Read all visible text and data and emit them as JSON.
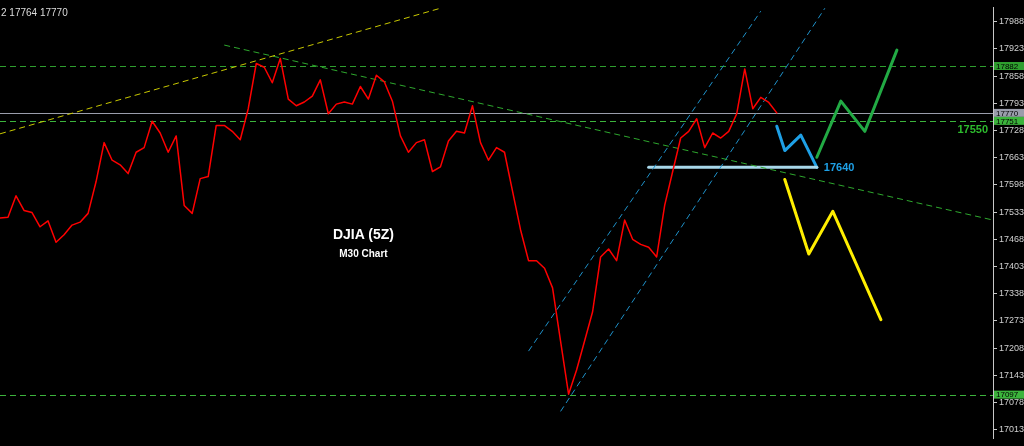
{
  "chart_data": {
    "type": "line",
    "title": "DJIA (5Z)",
    "subtitle": "M30 Chart",
    "annotations": [
      "2 17764 17770",
      "17550"
    ],
    "categories": [
      null,
      null,
      null,
      null,
      null,
      null,
      null,
      null,
      null,
      null,
      null,
      null,
      null,
      null,
      null,
      null,
      null,
      null,
      null,
      null,
      null,
      null,
      null,
      null,
      null,
      null,
      null,
      null,
      null,
      null,
      null,
      null,
      null,
      null,
      null,
      null,
      null,
      null,
      null,
      null,
      null,
      null,
      null,
      null,
      null,
      null,
      null,
      null,
      null,
      null,
      null,
      null,
      null,
      null,
      null,
      null,
      null,
      null,
      null,
      null,
      null,
      null,
      null,
      null,
      null,
      null,
      null,
      null,
      null,
      null,
      null,
      null,
      null,
      null,
      null,
      null,
      null,
      null,
      null,
      null,
      null,
      null,
      null,
      null,
      null,
      null,
      null,
      null,
      null,
      null,
      null,
      null,
      null,
      null,
      null,
      null,
      null,
      null,
      null,
      null,
      null,
      null,
      null,
      null,
      null,
      null,
      null,
      null,
      null,
      null,
      null,
      null,
      null,
      null,
      null,
      null,
      null,
      null,
      null,
      null,
      null,
      null,
      null,
      null,
      null
    ],
    "series": [
      {
        "color": "#ff0000",
        "line_style": "solid",
        "values": [
          17519,
          17521,
          17572,
          17537,
          17532,
          17498,
          17512,
          17461,
          17479,
          17502,
          17509,
          17530,
          17606,
          17699,
          17657,
          17646,
          17625,
          17676,
          17687,
          17750,
          17722,
          17676,
          17715,
          17549,
          17530,
          17613,
          17618,
          17740,
          17740,
          17726,
          17706,
          17780,
          17888,
          17879,
          17842,
          17900,
          17803,
          17787,
          17796,
          17810,
          17849,
          17768,
          17791,
          17796,
          17791,
          17833,
          17803,
          17860,
          17844,
          17798,
          17715,
          17676,
          17699,
          17706,
          17630,
          17641,
          17703,
          17726,
          17722,
          17787,
          17699,
          17657,
          17687,
          17676,
          17583,
          17491,
          17417,
          17417,
          17399,
          17352,
          17225,
          17098,
          17156,
          17225,
          17295,
          17426,
          17445,
          17417,
          17514,
          17468,
          17456,
          17449,
          17426,
          17549,
          17630,
          17710,
          17726,
          17756,
          17687,
          17722,
          17710,
          17726,
          17768,
          17875,
          17780,
          17807,
          17795,
          17770,
          null,
          null,
          null,
          null,
          null,
          null,
          null,
          null,
          null,
          null,
          null,
          null,
          null,
          null,
          null,
          null,
          null,
          null,
          null,
          null,
          null,
          null,
          null,
          null,
          null,
          null,
          null
        ]
      },
      {
        "color": "#c8c800",
        "line_style": "dashed",
        "values": [
          17720,
          null,
          null,
          null,
          null,
          null,
          null,
          null,
          null,
          null,
          null,
          null,
          null,
          null,
          null,
          null,
          null,
          null,
          null,
          null,
          null,
          null,
          null,
          null,
          null,
          null,
          null,
          null,
          null,
          null,
          null,
          null,
          null,
          null,
          null,
          null,
          null,
          null,
          null,
          null,
          null,
          null,
          null,
          null,
          null,
          null,
          null,
          null,
          null,
          null,
          null,
          null,
          null,
          null,
          null,
          18020,
          null,
          null,
          null,
          null,
          null,
          null,
          null,
          null,
          null,
          null,
          null,
          null,
          null,
          null,
          null,
          null,
          null,
          null,
          null,
          null,
          null,
          null,
          null,
          null,
          null,
          null,
          null,
          null,
          null,
          null,
          null,
          null,
          null,
          null,
          null,
          null,
          null,
          null,
          null,
          null,
          null,
          null,
          null,
          null,
          null,
          null,
          null,
          null,
          null,
          null,
          null,
          null,
          null,
          null,
          null,
          null,
          null,
          null,
          null,
          null,
          null,
          null,
          null,
          null,
          null,
          null,
          null,
          null,
          null
        ]
      },
      {
        "color": "#2ea82e",
        "line_style": "dashed",
        "values": [
          null,
          null,
          null,
          null,
          null,
          null,
          null,
          null,
          null,
          null,
          null,
          null,
          null,
          null,
          null,
          null,
          null,
          null,
          null,
          null,
          null,
          null,
          null,
          null,
          null,
          null,
          null,
          null,
          17932,
          null,
          null,
          null,
          null,
          null,
          null,
          null,
          null,
          null,
          null,
          null,
          null,
          null,
          null,
          null,
          null,
          null,
          null,
          null,
          null,
          null,
          null,
          null,
          null,
          null,
          null,
          null,
          null,
          null,
          null,
          null,
          null,
          null,
          null,
          null,
          null,
          null,
          null,
          null,
          null,
          null,
          null,
          null,
          null,
          null,
          null,
          null,
          null,
          null,
          null,
          null,
          null,
          null,
          null,
          null,
          null,
          null,
          null,
          null,
          null,
          null,
          null,
          null,
          null,
          null,
          null,
          null,
          null,
          null,
          null,
          null,
          null,
          null,
          null,
          null,
          null,
          null,
          null,
          null,
          null,
          null,
          null,
          null,
          null,
          null,
          null,
          null,
          null,
          null,
          null,
          null,
          null,
          null,
          null,
          null,
          17514
        ]
      },
      {
        "color": "#1e90c8",
        "line_style": "dashed",
        "values": [
          null,
          null,
          null,
          null,
          null,
          null,
          null,
          null,
          null,
          null,
          null,
          null,
          null,
          null,
          null,
          null,
          null,
          null,
          null,
          null,
          null,
          null,
          null,
          null,
          null,
          null,
          null,
          null,
          null,
          null,
          null,
          null,
          null,
          null,
          null,
          null,
          null,
          null,
          null,
          null,
          null,
          null,
          null,
          null,
          null,
          null,
          null,
          null,
          null,
          null,
          null,
          null,
          null,
          null,
          null,
          null,
          null,
          null,
          null,
          null,
          null,
          null,
          null,
          null,
          null,
          null,
          17201,
          null,
          null,
          null,
          null,
          null,
          null,
          null,
          null,
          null,
          null,
          null,
          null,
          null,
          null,
          null,
          null,
          null,
          null,
          null,
          null,
          null,
          null,
          null,
          null,
          null,
          null,
          null,
          null,
          18013,
          null,
          null,
          null,
          null,
          null,
          null,
          null,
          null,
          null,
          null,
          null,
          null,
          null,
          null,
          null,
          null,
          null,
          null,
          null,
          null,
          null,
          null,
          null,
          null,
          null,
          null,
          null,
          null,
          null
        ]
      },
      {
        "color": "#1e90c8",
        "line_style": "dashed",
        "values": [
          null,
          null,
          null,
          null,
          null,
          null,
          null,
          null,
          null,
          null,
          null,
          null,
          null,
          null,
          null,
          null,
          null,
          null,
          null,
          null,
          null,
          null,
          null,
          null,
          null,
          null,
          null,
          null,
          null,
          null,
          null,
          null,
          null,
          null,
          null,
          null,
          null,
          null,
          null,
          null,
          null,
          null,
          null,
          null,
          null,
          null,
          null,
          null,
          null,
          null,
          null,
          null,
          null,
          null,
          null,
          null,
          null,
          null,
          null,
          null,
          null,
          null,
          null,
          null,
          null,
          null,
          null,
          null,
          null,
          null,
          17057,
          null,
          null,
          null,
          null,
          null,
          null,
          null,
          null,
          null,
          null,
          null,
          null,
          null,
          null,
          null,
          null,
          null,
          null,
          null,
          null,
          null,
          null,
          null,
          null,
          null,
          null,
          null,
          null,
          null,
          null,
          null,
          null,
          18020,
          null,
          null,
          null,
          null,
          null,
          null,
          null,
          null,
          null,
          null,
          null,
          null,
          null,
          null,
          null,
          null,
          null,
          null,
          null,
          null,
          null
        ]
      },
      {
        "color": "#a8d8ea",
        "line_style": "solid",
        "values": [
          null,
          null,
          null,
          null,
          null,
          null,
          null,
          null,
          null,
          null,
          null,
          null,
          null,
          null,
          null,
          null,
          null,
          null,
          null,
          null,
          null,
          null,
          null,
          null,
          null,
          null,
          null,
          null,
          null,
          null,
          null,
          null,
          null,
          null,
          null,
          null,
          null,
          null,
          null,
          null,
          null,
          null,
          null,
          null,
          null,
          null,
          null,
          null,
          null,
          null,
          null,
          null,
          null,
          null,
          null,
          null,
          null,
          null,
          null,
          null,
          null,
          null,
          null,
          null,
          null,
          null,
          null,
          null,
          null,
          null,
          null,
          null,
          null,
          null,
          null,
          null,
          null,
          null,
          null,
          null,
          null,
          17640,
          null,
          null,
          null,
          null,
          null,
          null,
          null,
          null,
          null,
          null,
          null,
          null,
          null,
          null,
          null,
          null,
          null,
          null,
          null,
          null,
          17640,
          null,
          null,
          null,
          null,
          null,
          null,
          null,
          null,
          null,
          null,
          null,
          null,
          null,
          null,
          null,
          null,
          null,
          null,
          null,
          null,
          null,
          null
        ]
      },
      {
        "name": "17640",
        "color": "#1ea0e6",
        "line_style": "solid",
        "values": [
          null,
          null,
          null,
          null,
          null,
          null,
          null,
          null,
          null,
          null,
          null,
          null,
          null,
          null,
          null,
          null,
          null,
          null,
          null,
          null,
          null,
          null,
          null,
          null,
          null,
          null,
          null,
          null,
          null,
          null,
          null,
          null,
          null,
          null,
          null,
          null,
          null,
          null,
          null,
          null,
          null,
          null,
          null,
          null,
          null,
          null,
          null,
          null,
          null,
          null,
          null,
          null,
          null,
          null,
          null,
          null,
          null,
          null,
          null,
          null,
          null,
          null,
          null,
          null,
          null,
          null,
          null,
          null,
          null,
          null,
          null,
          null,
          null,
          null,
          null,
          null,
          null,
          null,
          null,
          null,
          null,
          null,
          null,
          null,
          null,
          null,
          null,
          null,
          null,
          null,
          null,
          null,
          null,
          null,
          null,
          null,
          null,
          17738,
          17680,
          null,
          17717,
          null,
          17640,
          null,
          null,
          null,
          null,
          null,
          null,
          null,
          null,
          null,
          null,
          null,
          null,
          null,
          null,
          null,
          null,
          null,
          null,
          null,
          null,
          null,
          null
        ]
      },
      {
        "color": "#22aa44",
        "line_style": "solid",
        "values": [
          null,
          null,
          null,
          null,
          null,
          null,
          null,
          null,
          null,
          null,
          null,
          null,
          null,
          null,
          null,
          null,
          null,
          null,
          null,
          null,
          null,
          null,
          null,
          null,
          null,
          null,
          null,
          null,
          null,
          null,
          null,
          null,
          null,
          null,
          null,
          null,
          null,
          null,
          null,
          null,
          null,
          null,
          null,
          null,
          null,
          null,
          null,
          null,
          null,
          null,
          null,
          null,
          null,
          null,
          null,
          null,
          null,
          null,
          null,
          null,
          null,
          null,
          null,
          null,
          null,
          null,
          null,
          null,
          null,
          null,
          null,
          null,
          null,
          null,
          null,
          null,
          null,
          null,
          null,
          null,
          null,
          null,
          null,
          null,
          null,
          null,
          null,
          null,
          null,
          null,
          null,
          null,
          null,
          null,
          null,
          null,
          null,
          null,
          null,
          null,
          null,
          null,
          17664,
          null,
          null,
          17798,
          null,
          null,
          17726,
          null,
          null,
          null,
          17920,
          null,
          null,
          null,
          null,
          null,
          null,
          null,
          null,
          null,
          null,
          null,
          null
        ]
      },
      {
        "color": "#ffee00",
        "line_style": "solid",
        "values": [
          null,
          null,
          null,
          null,
          null,
          null,
          null,
          null,
          null,
          null,
          null,
          null,
          null,
          null,
          null,
          null,
          null,
          null,
          null,
          null,
          null,
          null,
          null,
          null,
          null,
          null,
          null,
          null,
          null,
          null,
          null,
          null,
          null,
          null,
          null,
          null,
          null,
          null,
          null,
          null,
          null,
          null,
          null,
          null,
          null,
          null,
          null,
          null,
          null,
          null,
          null,
          null,
          null,
          null,
          null,
          null,
          null,
          null,
          null,
          null,
          null,
          null,
          null,
          null,
          null,
          null,
          null,
          null,
          null,
          null,
          null,
          null,
          null,
          null,
          null,
          null,
          null,
          null,
          null,
          null,
          null,
          null,
          null,
          null,
          null,
          null,
          null,
          null,
          null,
          null,
          null,
          null,
          null,
          null,
          null,
          null,
          null,
          null,
          17611,
          null,
          null,
          17433,
          null,
          null,
          17535,
          null,
          null,
          null,
          null,
          null,
          17276,
          null,
          null,
          null,
          null,
          null,
          null,
          null,
          null,
          null,
          null,
          null,
          null,
          null,
          null
        ]
      }
    ],
    "ylim": [
      16992,
      18022
    ],
    "yticks": [
      17013,
      17078,
      17143,
      17208,
      17273,
      17338,
      17403,
      17468,
      17533,
      17598,
      17663,
      17728,
      17793,
      17858,
      17923,
      17988
    ],
    "ref_lines": [
      {
        "axis": "y",
        "value": 17882,
        "label": "17882",
        "color": "#2e9e2e",
        "line_style": "dashed"
      },
      {
        "axis": "y",
        "value": 17770,
        "label": "17770",
        "color": "#9a9dab",
        "line_style": "solid"
      },
      {
        "axis": "y",
        "value": 17751,
        "label": "17751",
        "color": "#3cb43c",
        "line_style": "dashed"
      },
      {
        "axis": "y",
        "value": 17097,
        "label": "17097",
        "color": "#3cb43c",
        "line_style": "dashed"
      }
    ],
    "tick_labels": "y",
    "marker": "none"
  }
}
